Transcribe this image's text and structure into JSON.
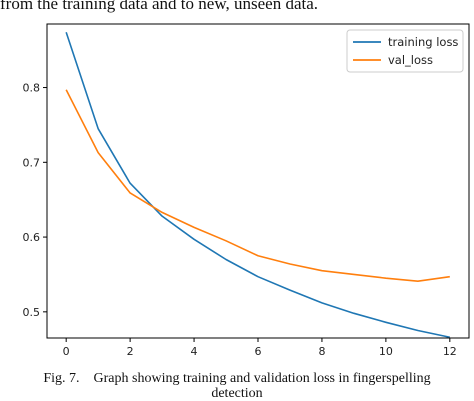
{
  "header_text": "from the training data and to new, unseen data.",
  "caption": {
    "line1": "Fig. 7.    Graph showing training and validation loss in fingerspelling",
    "line2": "detection"
  },
  "chart_data": {
    "type": "line",
    "title": "",
    "xlabel": "",
    "ylabel": "",
    "xlim": [
      -0.6,
      12.6
    ],
    "ylim": [
      0.465,
      0.885
    ],
    "xticks": [
      0,
      2,
      4,
      6,
      8,
      10,
      12
    ],
    "yticks": [
      0.5,
      0.6,
      0.7,
      0.8
    ],
    "ytick_labels": [
      "0.5",
      "0.6",
      "0.7",
      "0.8"
    ],
    "legend_position": "top-right",
    "grid": false,
    "x": [
      0,
      1,
      2,
      3,
      4,
      5,
      6,
      7,
      8,
      9,
      10,
      11,
      12
    ],
    "series": [
      {
        "name": "training loss",
        "color": "#1f77b4",
        "values": [
          0.874,
          0.745,
          0.672,
          0.628,
          0.597,
          0.57,
          0.547,
          0.529,
          0.512,
          0.498,
          0.486,
          0.475,
          0.466
        ]
      },
      {
        "name": "val_loss",
        "color": "#ff7f0e",
        "values": [
          0.797,
          0.713,
          0.659,
          0.633,
          0.613,
          0.595,
          0.575,
          0.564,
          0.555,
          0.55,
          0.545,
          0.541,
          0.547
        ]
      }
    ]
  }
}
